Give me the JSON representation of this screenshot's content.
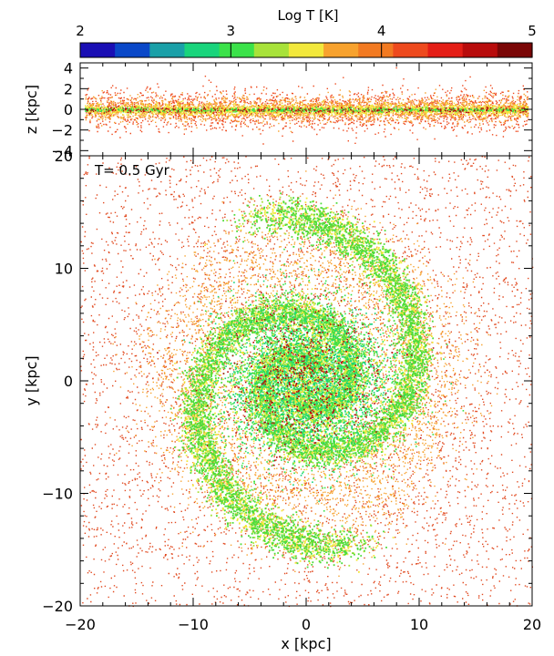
{
  "chart_data": [
    {
      "type": "heatmap",
      "role": "colorbar",
      "title": "Log T [K]",
      "range": [
        2,
        5
      ],
      "ticks": [
        2,
        3,
        4,
        5
      ],
      "bins": [
        {
          "value": 2.0,
          "color": "#1a0fb4"
        },
        {
          "value": 2.25,
          "color": "#0a48c8"
        },
        {
          "value": 2.5,
          "color": "#1aa0a8"
        },
        {
          "value": 2.75,
          "color": "#19d47c"
        },
        {
          "value": 3.0,
          "color": "#3be24a"
        },
        {
          "value": 3.25,
          "color": "#a8e23a"
        },
        {
          "value": 3.5,
          "color": "#f2e83c"
        },
        {
          "value": 3.75,
          "color": "#f7a22e"
        },
        {
          "value": 4.0,
          "color": "#f27a22"
        },
        {
          "value": 4.25,
          "color": "#ee4a1e"
        },
        {
          "value": 4.5,
          "color": "#e41e16"
        },
        {
          "value": 4.75,
          "color": "#b80c0c"
        },
        {
          "value": 5.0,
          "color": "#7a0606"
        }
      ]
    },
    {
      "type": "scatter",
      "role": "edge-on view",
      "xlabel": "",
      "ylabel": "z [kpc]",
      "xlim": [
        -20,
        20
      ],
      "ylim": [
        -4.5,
        4.5
      ],
      "yticks": [
        -4,
        -2,
        0,
        2,
        4
      ],
      "xticks": [
        -20,
        -10,
        0,
        10,
        20
      ],
      "disk_scale_height_kpc": 0.4
    },
    {
      "type": "scatter",
      "role": "face-on view",
      "annotation": "T= 0.5 Gyr",
      "xlabel": "x [kpc]",
      "ylabel": "y [kpc]",
      "xlim": [
        -20,
        20
      ],
      "ylim": [
        -20,
        20
      ],
      "xticks": [
        -20,
        -10,
        0,
        10,
        20
      ],
      "yticks": [
        -20,
        -10,
        0,
        10,
        20
      ],
      "spiral_arms": 2,
      "halo_particle_color": "#e14a20",
      "cold_gas_color": "#4fdc3a",
      "warm_gas_color": "#f2e83c"
    }
  ]
}
